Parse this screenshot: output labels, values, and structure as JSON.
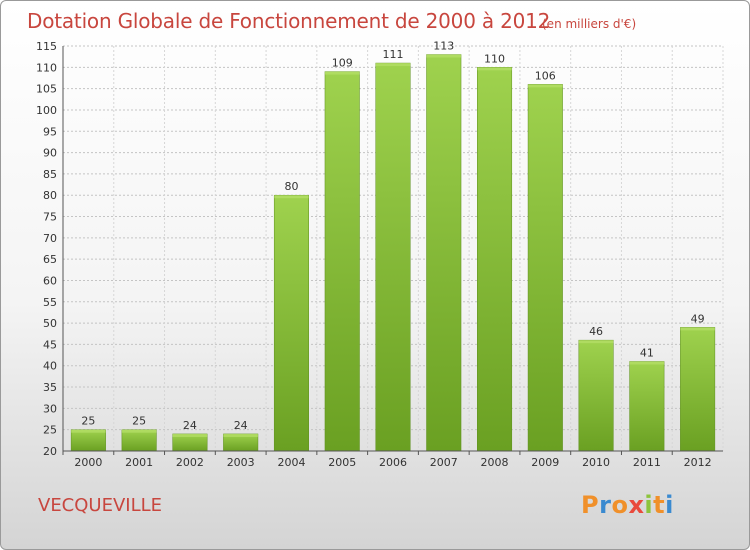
{
  "chart_data": {
    "type": "bar",
    "title": "Dotation Globale de Fonctionnement de 2000 à 2012",
    "subtitle": "(en milliers d'€)",
    "categories": [
      "2000",
      "2001",
      "2002",
      "2003",
      "2004",
      "2005",
      "2006",
      "2007",
      "2008",
      "2009",
      "2010",
      "2011",
      "2012"
    ],
    "values": [
      25,
      25,
      24,
      24,
      80,
      109,
      111,
      113,
      110,
      106,
      46,
      41,
      49
    ],
    "ylim": [
      20,
      115
    ],
    "yticks": [
      20,
      25,
      30,
      35,
      40,
      45,
      50,
      55,
      60,
      65,
      70,
      75,
      80,
      85,
      90,
      95,
      100,
      105,
      110,
      115
    ],
    "grid": "horizontal-dashed",
    "bar_color": "#8cc43c",
    "title_color": "#c8463e"
  },
  "commune": "VECQUEVILLE",
  "brand": {
    "letters": [
      "P",
      "r",
      "o",
      "x",
      "i",
      "t",
      "i"
    ],
    "colors": [
      "#f0902a",
      "#3a8ad0",
      "#f0902a",
      "#e94a3c",
      "#8cc43c",
      "#f0902a",
      "#3a8ad0"
    ]
  }
}
